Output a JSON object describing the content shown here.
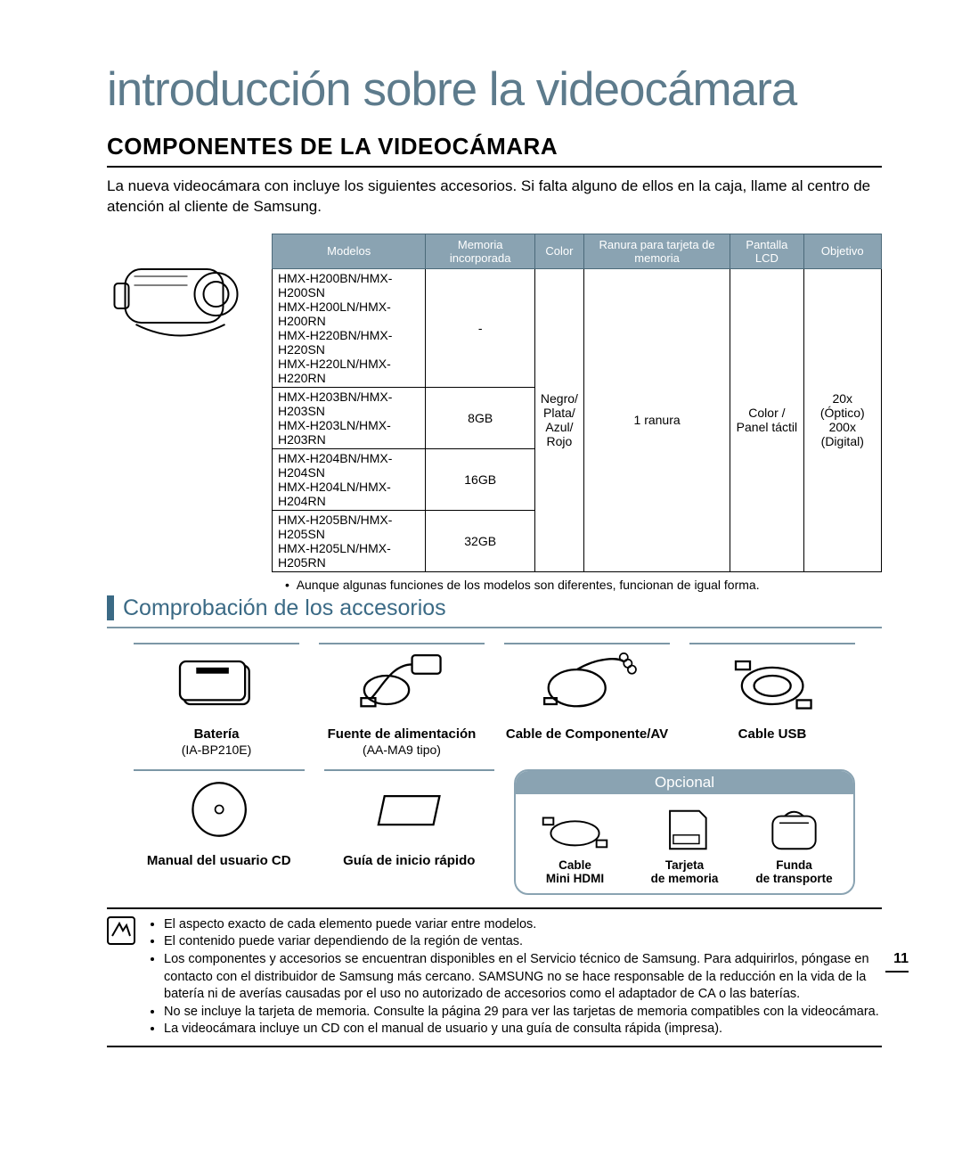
{
  "title": "introducción sobre la videocámara",
  "section_heading": "COMPONENTES DE LA VIDEOCÁMARA",
  "intro": "La nueva videocámara con incluye los siguientes accesorios. Si falta alguno de ellos en la caja, llame al centro de atención al cliente de Samsung.",
  "spec_table": {
    "headers": [
      "Modelos",
      "Memoria incorporada",
      "Color",
      "Ranura para tarjeta de memoria",
      "Pantalla LCD",
      "Objetivo"
    ],
    "model_groups": [
      {
        "lines": [
          "HMX-H200BN/HMX-H200SN",
          "HMX-H200LN/HMX-H200RN",
          "HMX-H220BN/HMX-H220SN",
          "HMX-H220LN/HMX-H220RN"
        ],
        "memory": "-"
      },
      {
        "lines": [
          "HMX-H203BN/HMX-H203SN",
          "HMX-H203LN/HMX-H203RN"
        ],
        "memory": "8GB"
      },
      {
        "lines": [
          "HMX-H204BN/HMX-H204SN",
          "HMX-H204LN/HMX-H204RN"
        ],
        "memory": "16GB"
      },
      {
        "lines": [
          "HMX-H205BN/HMX-H205SN",
          "HMX-H205LN/HMX-H205RN"
        ],
        "memory": "32GB"
      }
    ],
    "color": "Negro/\nPlata/\nAzul/\nRojo",
    "slot": "1 ranura",
    "lcd": "Color /\nPanel táctil",
    "lens": "20x (Óptico)\n200x (Digital)"
  },
  "table_note": "Aunque algunas funciones de los modelos son diferentes, funcionan de igual forma.",
  "subheading": "Comprobación de los accesorios",
  "accessories_row1": [
    {
      "label": "Batería",
      "sub": "(IA-BP210E)"
    },
    {
      "label": "Fuente de alimentación",
      "sub": "(AA-MA9 tipo)"
    },
    {
      "label": "Cable de Componente/AV",
      "sub": ""
    },
    {
      "label": "Cable USB",
      "sub": ""
    }
  ],
  "accessories_row2": [
    {
      "label": "Manual del usuario CD",
      "sub": ""
    },
    {
      "label": "Guía de inicio rápido",
      "sub": ""
    }
  ],
  "optional_label": "Opcional",
  "optional_items": [
    {
      "label": "Cable Mini HDMI"
    },
    {
      "label": "Tarjeta de memoria"
    },
    {
      "label": "Funda de transporte"
    }
  ],
  "notes": [
    "El aspecto exacto de cada elemento puede variar entre modelos.",
    "El contenido puede variar dependiendo de la región de ventas.",
    "Los componentes y accesorios se encuentran disponibles en el Servicio técnico de Samsung. Para adquirirlos, póngase en contacto con el distribuidor de Samsung más cercano. SAMSUNG no se hace responsable de la reducción en la vida de la batería ni de averías causadas por el uso no autorizado de accesorios como el adaptador de CA o las baterías.",
    "No se incluye la tarjeta de memoria. Consulte la página 29 para ver las tarjetas de memoria compatibles con la videocámara.",
    "La videocámara incluye un CD con el manual de usuario y una guía de consulta rápida (impresa)."
  ],
  "page_number": "11"
}
